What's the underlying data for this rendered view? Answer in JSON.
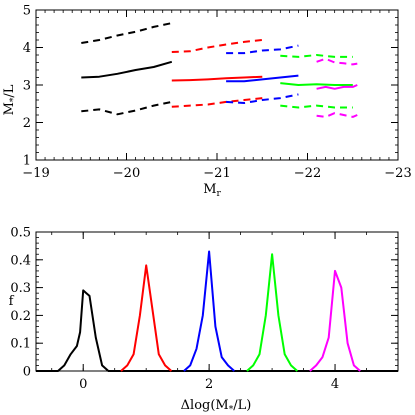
{
  "chart_data": [
    {
      "type": "line",
      "xlabel": "M",
      "xlabel_sub": "r",
      "ylabel": "M",
      "ylabel_sub": "*",
      "ylabel_suffix": "/L",
      "xlim": [
        -19,
        -23
      ],
      "ylim": [
        1,
        5
      ],
      "xticks": [
        -19,
        -20,
        -21,
        -22,
        -23
      ],
      "xtick_labels": [
        "−19",
        "−20",
        "−21",
        "−22",
        "−23"
      ],
      "yticks": [
        1,
        2,
        3,
        4,
        5
      ],
      "ytick_labels": [
        "1",
        "2",
        "3",
        "4",
        "5"
      ],
      "series": [
        {
          "color": "#000000",
          "style": "solid",
          "x": [
            -19.5,
            -19.7,
            -19.9,
            -20.1,
            -20.3,
            -20.5
          ],
          "y": [
            3.2,
            3.22,
            3.3,
            3.4,
            3.48,
            3.62
          ]
        },
        {
          "color": "#000000",
          "style": "dashed",
          "x": [
            -19.5,
            -19.7,
            -19.9,
            -20.1,
            -20.3,
            -20.5
          ],
          "y": [
            4.12,
            4.2,
            4.32,
            4.42,
            4.55,
            4.65
          ]
        },
        {
          "color": "#000000",
          "style": "dashed",
          "x": [
            -19.5,
            -19.7,
            -19.9,
            -20.1,
            -20.3,
            -20.5
          ],
          "y": [
            2.3,
            2.35,
            2.22,
            2.32,
            2.45,
            2.55
          ]
        },
        {
          "color": "#ff0000",
          "style": "solid",
          "x": [
            -20.5,
            -20.7,
            -20.9,
            -21.1,
            -21.3,
            -21.5
          ],
          "y": [
            3.12,
            3.13,
            3.15,
            3.18,
            3.2,
            3.22
          ]
        },
        {
          "color": "#ff0000",
          "style": "dashed",
          "x": [
            -20.5,
            -20.7,
            -20.9,
            -21.1,
            -21.3,
            -21.5
          ],
          "y": [
            3.88,
            3.9,
            4.0,
            4.08,
            4.15,
            4.2
          ]
        },
        {
          "color": "#ff0000",
          "style": "dashed",
          "x": [
            -20.5,
            -20.7,
            -20.9,
            -21.1,
            -21.3,
            -21.5
          ],
          "y": [
            2.42,
            2.45,
            2.48,
            2.55,
            2.6,
            2.65
          ]
        },
        {
          "color": "#0000ff",
          "style": "solid",
          "x": [
            -21.1,
            -21.3,
            -21.5,
            -21.7,
            -21.9
          ],
          "y": [
            3.1,
            3.1,
            3.15,
            3.2,
            3.25
          ]
        },
        {
          "color": "#0000ff",
          "style": "dashed",
          "x": [
            -21.1,
            -21.3,
            -21.5,
            -21.7,
            -21.9
          ],
          "y": [
            3.85,
            3.85,
            3.92,
            3.95,
            4.05
          ]
        },
        {
          "color": "#0000ff",
          "style": "dashed",
          "x": [
            -21.1,
            -21.3,
            -21.5,
            -21.7,
            -21.9
          ],
          "y": [
            2.55,
            2.52,
            2.6,
            2.65,
            2.75
          ]
        },
        {
          "color": "#00ff00",
          "style": "solid",
          "x": [
            -21.7,
            -21.9,
            -22.1,
            -22.3,
            -22.5
          ],
          "y": [
            3.05,
            3.0,
            3.02,
            3.0,
            3.0
          ]
        },
        {
          "color": "#00ff00",
          "style": "dashed",
          "x": [
            -21.7,
            -21.9,
            -22.1,
            -22.3,
            -22.5
          ],
          "y": [
            3.78,
            3.75,
            3.8,
            3.75,
            3.75
          ]
        },
        {
          "color": "#00ff00",
          "style": "dashed",
          "x": [
            -21.7,
            -21.9,
            -22.1,
            -22.3,
            -22.5
          ],
          "y": [
            2.45,
            2.4,
            2.45,
            2.4,
            2.4
          ]
        },
        {
          "color": "#ff00ff",
          "style": "solid",
          "x": [
            -22.1,
            -22.2,
            -22.3,
            -22.4,
            -22.5,
            -22.55
          ],
          "y": [
            2.9,
            2.95,
            2.9,
            2.95,
            2.95,
            3.0
          ]
        },
        {
          "color": "#ff00ff",
          "style": "dashed",
          "x": [
            -22.1,
            -22.2,
            -22.3,
            -22.4,
            -22.5,
            -22.55
          ],
          "y": [
            3.62,
            3.7,
            3.6,
            3.58,
            3.55,
            3.57
          ]
        },
        {
          "color": "#ff00ff",
          "style": "dashed",
          "x": [
            -22.1,
            -22.2,
            -22.3,
            -22.4,
            -22.5,
            -22.55
          ],
          "y": [
            2.18,
            2.15,
            2.25,
            2.2,
            2.15,
            2.2
          ]
        }
      ]
    },
    {
      "type": "line",
      "xlabel": "Δlog(M",
      "xlabel_sub": "*",
      "xlabel_suffix": "/L)",
      "ylabel": "f",
      "xlim": [
        -0.75,
        5
      ],
      "ylim": [
        0,
        0.5
      ],
      "xticks": [
        0,
        2,
        4
      ],
      "xtick_labels": [
        "0",
        "2",
        "4"
      ],
      "yticks": [
        0,
        0.1,
        0.2,
        0.3,
        0.4,
        0.5
      ],
      "ytick_labels": [
        "0",
        "0.1",
        "0.2",
        "0.3",
        "0.4",
        "0.5"
      ],
      "series": [
        {
          "color": "#000000",
          "style": "solid",
          "x": [
            -0.75,
            -0.4,
            -0.3,
            -0.2,
            -0.1,
            -0.05,
            0.0,
            0.05,
            0.1,
            0.2,
            0.3,
            0.4,
            5.0
          ],
          "y": [
            0,
            0,
            0.02,
            0.06,
            0.09,
            0.14,
            0.29,
            0.28,
            0.27,
            0.12,
            0.02,
            0,
            0
          ]
        },
        {
          "color": "#ff0000",
          "style": "solid",
          "x": [
            0.6,
            0.7,
            0.8,
            0.9,
            1.0,
            1.1,
            1.2,
            1.3,
            1.4
          ],
          "y": [
            0,
            0.02,
            0.06,
            0.2,
            0.38,
            0.22,
            0.06,
            0.02,
            0
          ]
        },
        {
          "color": "#0000ff",
          "style": "solid",
          "x": [
            1.6,
            1.7,
            1.8,
            1.9,
            2.0,
            2.1,
            2.2,
            2.3,
            2.4
          ],
          "y": [
            0,
            0.02,
            0.08,
            0.2,
            0.43,
            0.16,
            0.05,
            0.02,
            0
          ]
        },
        {
          "color": "#00ff00",
          "style": "solid",
          "x": [
            2.6,
            2.7,
            2.8,
            2.9,
            3.0,
            3.1,
            3.2,
            3.3,
            3.4
          ],
          "y": [
            0,
            0.02,
            0.06,
            0.2,
            0.42,
            0.2,
            0.06,
            0.02,
            0
          ]
        },
        {
          "color": "#ff00ff",
          "style": "solid",
          "x": [
            3.6,
            3.7,
            3.8,
            3.9,
            4.0,
            4.1,
            4.2,
            4.3,
            4.4
          ],
          "y": [
            0,
            0.02,
            0.05,
            0.12,
            0.36,
            0.3,
            0.1,
            0.02,
            0
          ]
        }
      ]
    }
  ]
}
